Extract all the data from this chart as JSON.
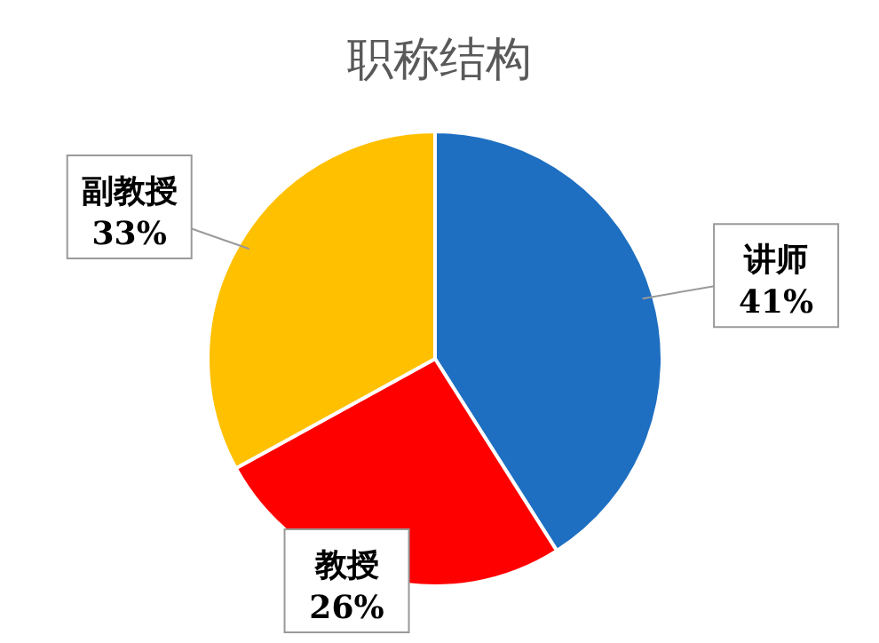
{
  "chart_data": {
    "type": "pie",
    "title": "职称结构",
    "categories": [
      "讲师",
      "教授",
      "副教授"
    ],
    "values": [
      41,
      26,
      33
    ],
    "value_labels": [
      "41%",
      "26%",
      "33%"
    ],
    "colors": [
      "#1e6fc1",
      "#ff0000",
      "#ffc000"
    ],
    "legend": false
  }
}
